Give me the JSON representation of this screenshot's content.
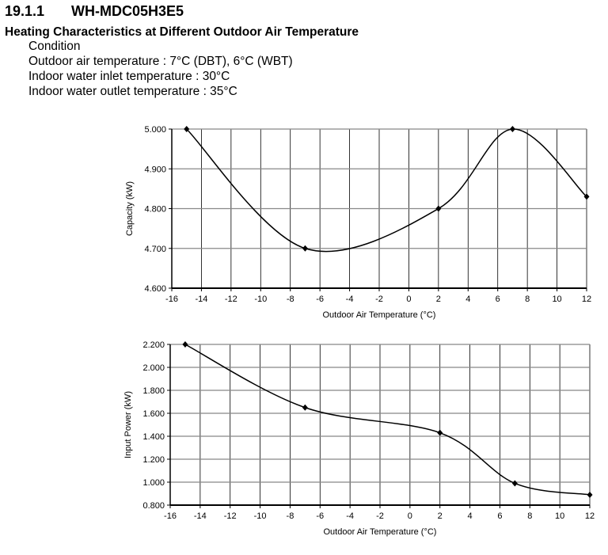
{
  "section_number": "19.1.1",
  "model": "WH-MDC05H3E5",
  "heading": "Heating Characteristics at Different Outdoor Air Temperature",
  "conditions": [
    "Condition",
    "Outdoor air temperature : 7°C (DBT), 6°C (WBT)",
    "Indoor water inlet temperature : 30°C",
    "Indoor water outlet temperature : 35°C"
  ],
  "chart_data": [
    {
      "type": "line",
      "xlabel": "Outdoor Air Temperature (°C)",
      "ylabel": "Capacity (kW)",
      "xlim": [
        -16,
        12
      ],
      "ylim": [
        4.6,
        5.0
      ],
      "xticks": [
        "-16",
        "-14",
        "-12",
        "-10",
        "-8",
        "-6",
        "-4",
        "-2",
        "0",
        "2",
        "4",
        "6",
        "8",
        "10",
        "12"
      ],
      "yticks": [
        "4.600",
        "4.700",
        "4.800",
        "4.900",
        "5.000"
      ],
      "grid": true,
      "smooth": true,
      "marker": "diamond",
      "x": [
        -15,
        -7,
        2,
        7,
        12
      ],
      "y": [
        5.0,
        4.7,
        4.8,
        5.0,
        4.83
      ]
    },
    {
      "type": "line",
      "xlabel": "Outdoor Air Temperature (°C)",
      "ylabel": "Input Power (kW)",
      "xlim": [
        -16,
        12
      ],
      "ylim": [
        0.8,
        2.2
      ],
      "xticks": [
        "-16",
        "-14",
        "-12",
        "-10",
        "-8",
        "-6",
        "-4",
        "-2",
        "0",
        "2",
        "4",
        "6",
        "8",
        "10",
        "12"
      ],
      "yticks": [
        "0.800",
        "1.000",
        "1.200",
        "1.400",
        "1.600",
        "1.800",
        "2.000",
        "2.200"
      ],
      "grid": true,
      "smooth": true,
      "marker": "diamond",
      "x": [
        -15,
        -7,
        2,
        7,
        12
      ],
      "y": [
        2.2,
        1.65,
        1.43,
        0.99,
        0.89
      ]
    }
  ]
}
